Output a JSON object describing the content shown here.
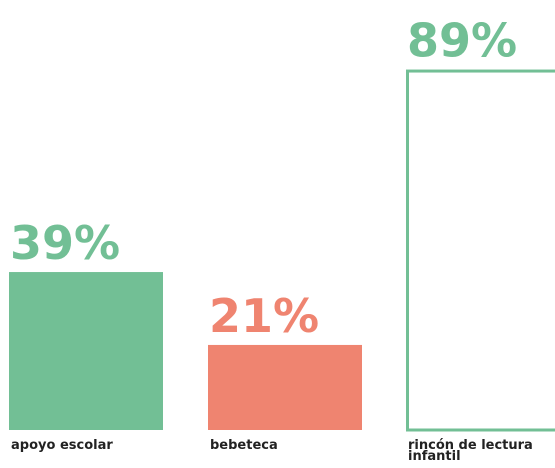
{
  "chart_data": {
    "type": "bar",
    "categories": [
      "apoyo escolar",
      "bebeteca",
      "rincón de lectura infantil"
    ],
    "values": [
      39,
      21,
      89
    ],
    "value_labels": [
      "39%",
      "21%",
      "89%"
    ],
    "colors": [
      "#72bf95",
      "#ef8470",
      "#72bf95"
    ],
    "outlined": [
      false,
      false,
      true
    ],
    "ylim": [
      0,
      100
    ]
  }
}
